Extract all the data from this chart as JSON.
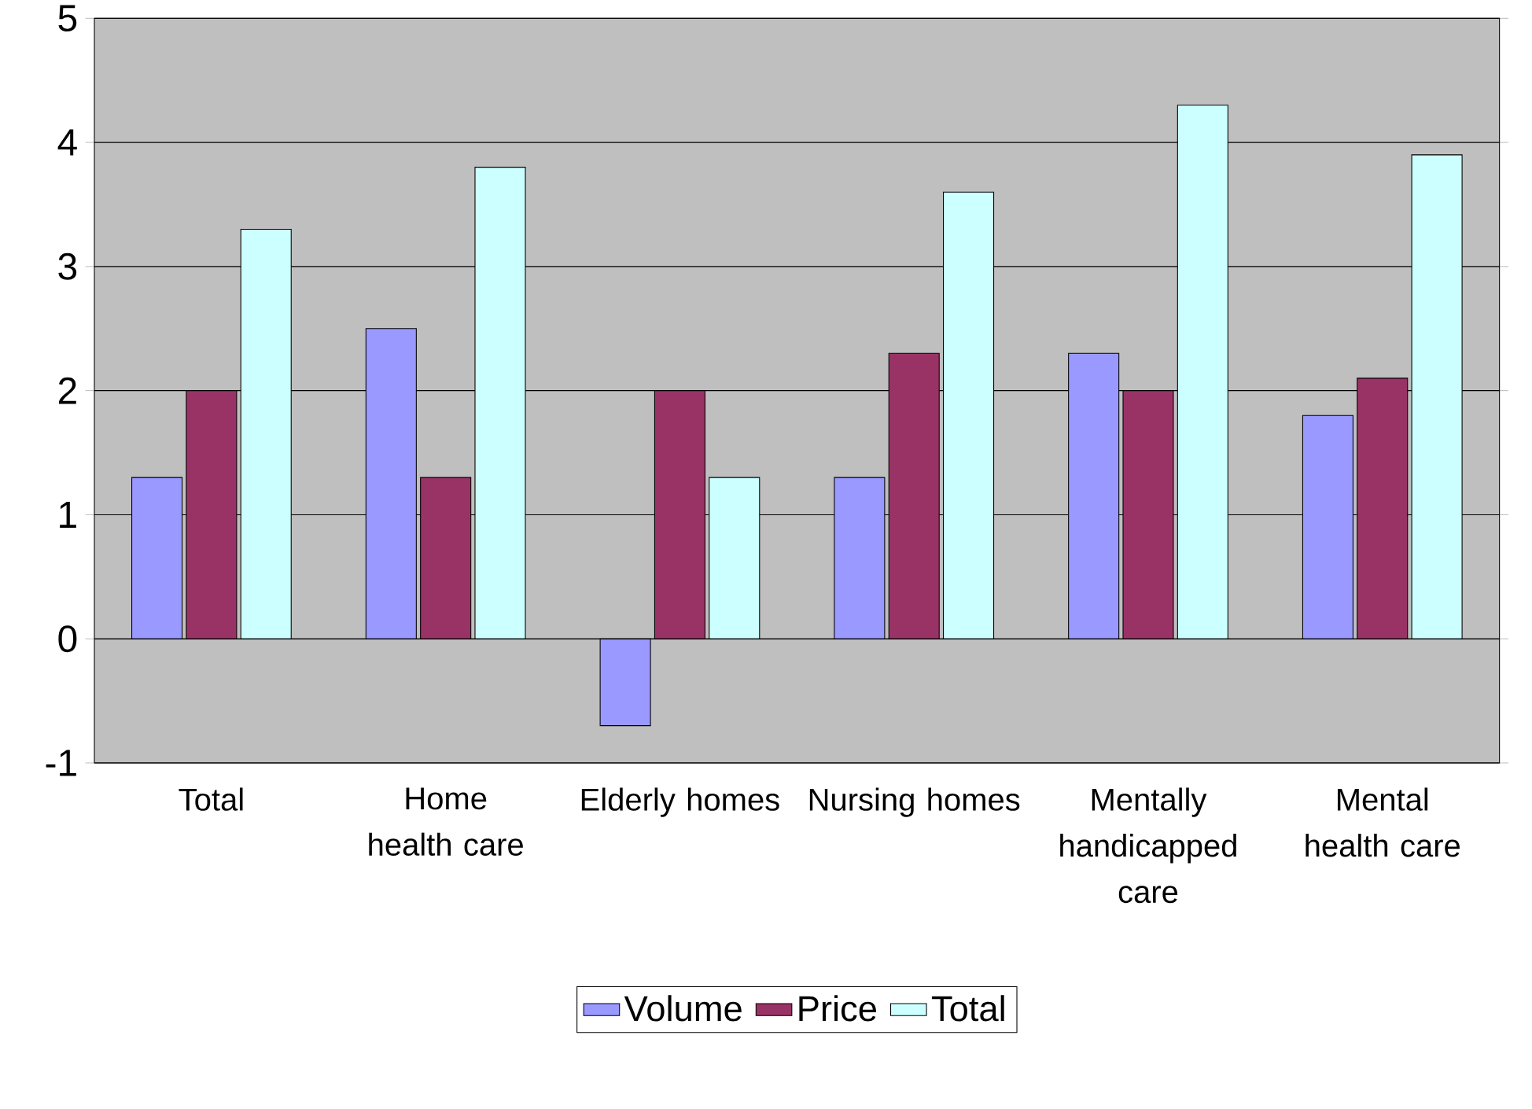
{
  "chart_data": {
    "type": "bar",
    "categories": [
      "Total",
      "Home health care",
      "Elderly homes",
      "Nursing homes",
      "Mentally handicapped care",
      "Mental health care"
    ],
    "series": [
      {
        "name": "Volume",
        "color": "#9999ff",
        "values": [
          1.3,
          2.5,
          -0.7,
          1.3,
          2.3,
          1.8
        ]
      },
      {
        "name": "Price",
        "color": "#993366",
        "values": [
          2.0,
          1.3,
          2.0,
          2.3,
          2.0,
          2.1
        ]
      },
      {
        "name": "Total",
        "color": "#ccffff",
        "values": [
          3.3,
          3.8,
          1.3,
          3.6,
          4.3,
          3.9
        ]
      }
    ],
    "ylim": [
      -1,
      5
    ],
    "yticks": [
      -1,
      0,
      1,
      2,
      3,
      4,
      5
    ],
    "grid": "y",
    "legend": "bottom"
  }
}
